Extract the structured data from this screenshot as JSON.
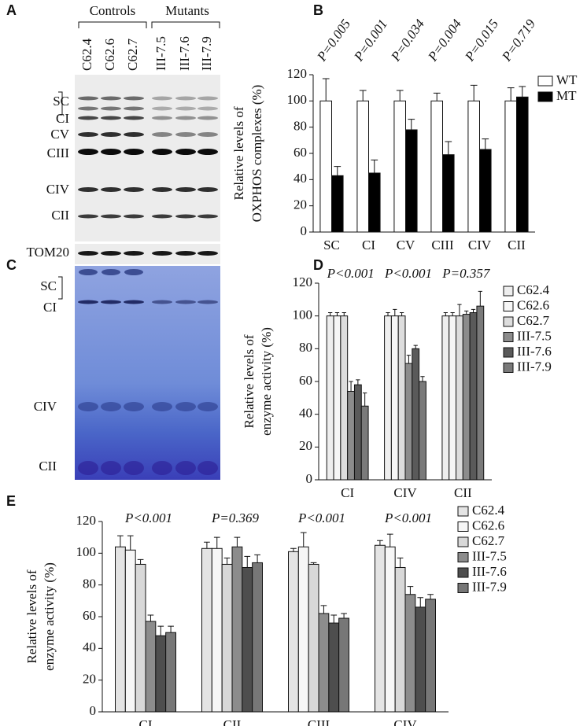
{
  "panels": {
    "A": {
      "letter": "A",
      "groups": [
        "Controls",
        "Mutants"
      ],
      "lanes": [
        "C62.4",
        "C62.6",
        "C62.7",
        "III-7.5",
        "III-7.6",
        "III-7.9"
      ],
      "rows": [
        "SC",
        "CI",
        "CV",
        "CIII",
        "CIV",
        "CII",
        "TOM20"
      ]
    },
    "C": {
      "letter": "C",
      "rows": [
        "SC",
        "CI",
        "CIV",
        "CII"
      ]
    }
  },
  "chart_data": [
    {
      "type": "bar",
      "panel": "B",
      "y_label": [
        "Relative levels of",
        "OXPHOS complexes (%)"
      ],
      "categories": [
        "SC",
        "CI",
        "CV",
        "CIII",
        "CIV",
        "CII"
      ],
      "annotations": [
        "P=0.005",
        "P=0.001",
        "P=0.034",
        "P=0.004",
        "P=0.015",
        "P=0.719"
      ],
      "series": [
        {
          "name": "WT",
          "color": "#ffffff",
          "values": [
            100,
            100,
            100,
            100,
            100,
            100
          ],
          "errors": [
            17,
            8,
            8,
            6,
            12,
            10
          ]
        },
        {
          "name": "MT",
          "color": "#000000",
          "values": [
            43,
            45,
            78,
            59,
            63,
            103
          ],
          "errors": [
            7,
            10,
            8,
            10,
            8,
            8
          ]
        }
      ],
      "ylim": [
        0,
        120
      ],
      "yticks": [
        0,
        20,
        40,
        60,
        80,
        100,
        120
      ],
      "legend": "right"
    },
    {
      "type": "bar",
      "panel": "D",
      "y_label": [
        "Relative levels of",
        "enzyme activity (%)"
      ],
      "categories": [
        "CI",
        "CIV",
        "CII"
      ],
      "annotations": [
        "P<0.001",
        "P<0.001",
        "P=0.357"
      ],
      "series": [
        {
          "name": "C62.4",
          "color": "#eeeeee",
          "values": [
            100,
            100,
            100
          ],
          "errors": [
            2,
            2,
            2
          ]
        },
        {
          "name": "C62.6",
          "color": "#f6f6f6",
          "values": [
            100,
            100,
            100
          ],
          "errors": [
            2,
            4,
            2
          ]
        },
        {
          "name": "C62.7",
          "color": "#dddddd",
          "values": [
            100,
            100,
            100
          ],
          "errors": [
            2,
            2,
            7
          ]
        },
        {
          "name": "III-7.5",
          "color": "#8c8c8c",
          "values": [
            54,
            71,
            101
          ],
          "errors": [
            6,
            5,
            2
          ]
        },
        {
          "name": "III-7.6",
          "color": "#5a5a5a",
          "values": [
            58,
            80,
            102
          ],
          "errors": [
            3,
            2,
            2
          ]
        },
        {
          "name": "III-7.9",
          "color": "#7a7a7a",
          "values": [
            45,
            60,
            106
          ],
          "errors": [
            8,
            3,
            9
          ]
        }
      ],
      "ylim": [
        0,
        120
      ],
      "yticks": [
        0,
        20,
        40,
        60,
        80,
        100,
        120
      ],
      "legend": "right"
    },
    {
      "type": "bar",
      "panel": "E",
      "y_label": [
        "Relative levels of",
        "enzyme activity (%)"
      ],
      "categories": [
        "CI",
        "CII",
        "CIII",
        "CIV"
      ],
      "annotations": [
        "P<0.001",
        "P=0.369",
        "P<0.001",
        "P<0.001"
      ],
      "series": [
        {
          "name": "C62.4",
          "color": "#e4e4e4",
          "values": [
            104,
            103,
            101,
            105
          ],
          "errors": [
            7,
            4,
            2,
            3
          ]
        },
        {
          "name": "C62.6",
          "color": "#f6f6f6",
          "values": [
            102,
            103,
            104,
            104
          ],
          "errors": [
            9,
            7,
            9,
            8
          ]
        },
        {
          "name": "C62.7",
          "color": "#d8d8d8",
          "values": [
            93,
            93,
            93,
            91
          ],
          "errors": [
            3,
            4,
            1,
            6
          ]
        },
        {
          "name": "III-7.5",
          "color": "#8c8c8c",
          "values": [
            57,
            104,
            62,
            74
          ],
          "errors": [
            4,
            6,
            5,
            5
          ]
        },
        {
          "name": "III-7.6",
          "color": "#4e4e4e",
          "values": [
            48,
            91,
            56,
            66
          ],
          "errors": [
            6,
            7,
            5,
            6
          ]
        },
        {
          "name": "III-7.9",
          "color": "#777777",
          "values": [
            50,
            94,
            59,
            71
          ],
          "errors": [
            4,
            5,
            3,
            3
          ]
        }
      ],
      "ylim": [
        0,
        120
      ],
      "yticks": [
        0,
        20,
        40,
        60,
        80,
        100,
        120
      ],
      "legend": "right"
    }
  ]
}
